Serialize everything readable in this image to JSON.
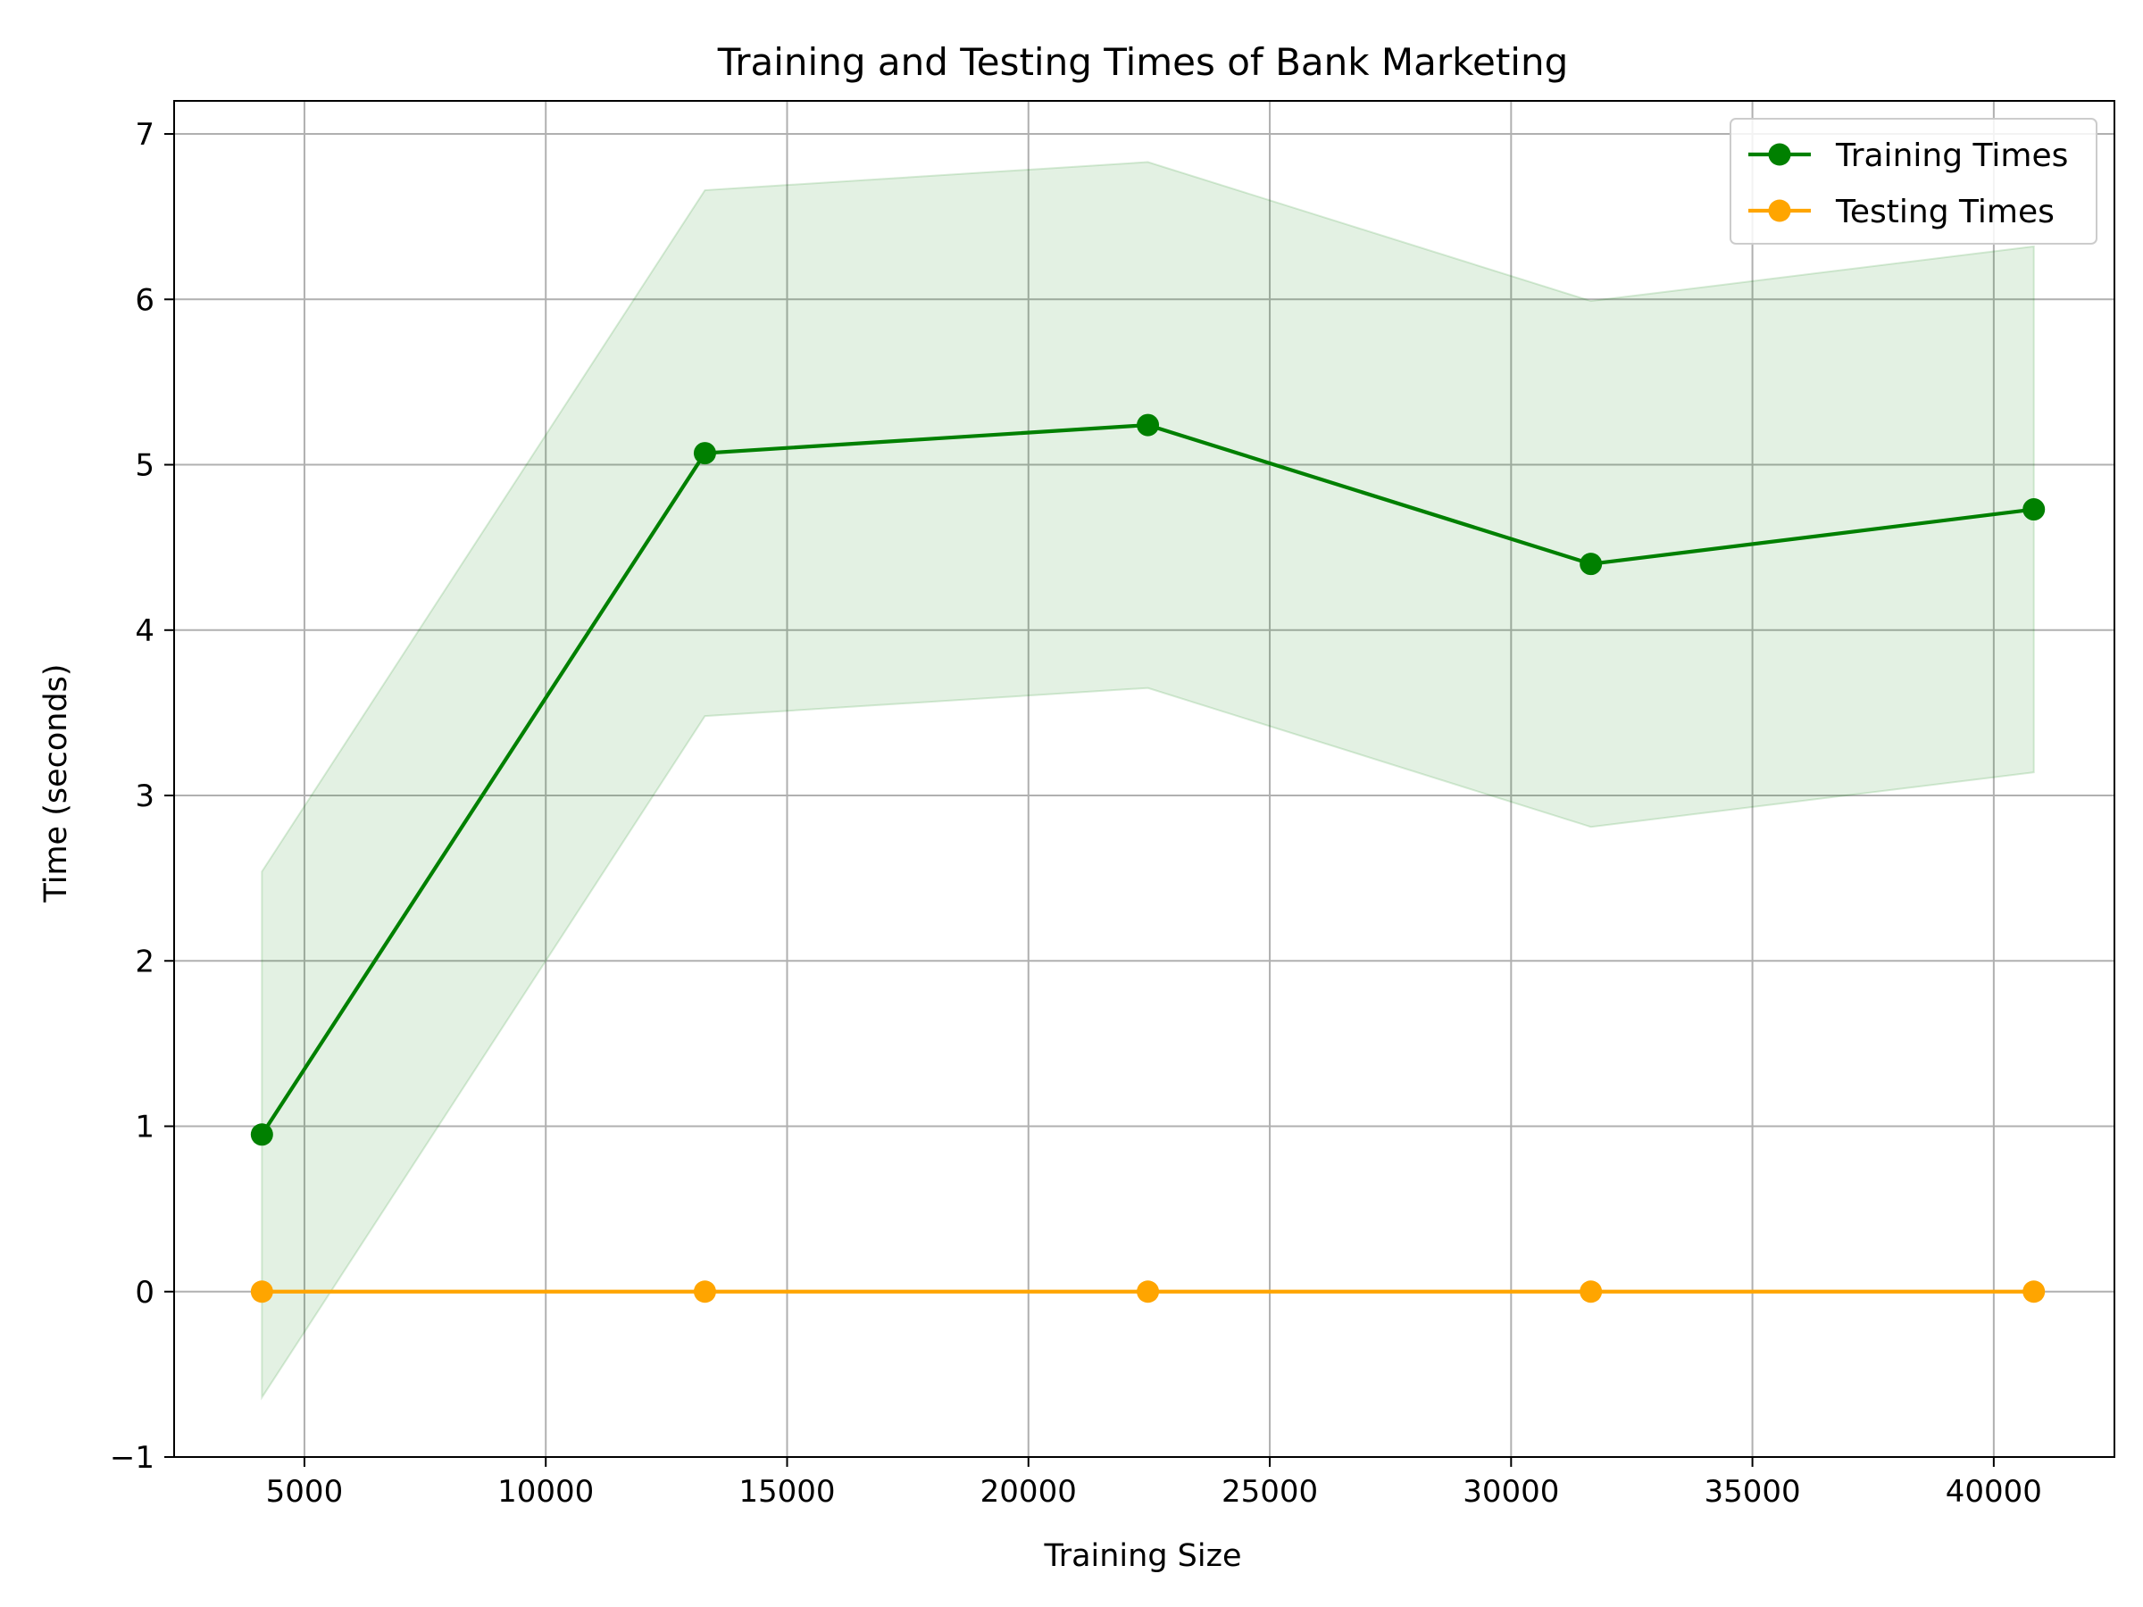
{
  "chart_data": {
    "type": "line",
    "title": "Training and Testing Times of Bank Marketing",
    "xlabel": "Training Size",
    "ylabel": "Time (seconds)",
    "xlim": [
      2300,
      42500
    ],
    "ylim": [
      -1,
      7.2
    ],
    "xticks": [
      5000,
      10000,
      15000,
      20000,
      25000,
      30000,
      35000,
      40000
    ],
    "xtick_labels": [
      "5000",
      "10000",
      "15000",
      "20000",
      "25000",
      "30000",
      "35000",
      "40000"
    ],
    "yticks": [
      -1,
      0,
      1,
      2,
      3,
      4,
      5,
      6,
      7
    ],
    "ytick_labels": [
      "−1",
      "0",
      "1",
      "2",
      "3",
      "4",
      "5",
      "6",
      "7"
    ],
    "grid": true,
    "legend_position": "top-right",
    "x": [
      4119,
      13297,
      22475,
      31653,
      40830
    ],
    "series": [
      {
        "name": "Training Times",
        "color": "#008000",
        "marker": "circle",
        "values": [
          0.95,
          5.07,
          5.24,
          4.4,
          4.73
        ],
        "band_upper": [
          2.54,
          6.66,
          6.83,
          5.99,
          6.32
        ],
        "band_lower": [
          -0.64,
          3.48,
          3.65,
          2.81,
          3.14
        ],
        "band_color": "#008000",
        "band_opacity": 0.11
      },
      {
        "name": "Testing Times",
        "color": "#ffa500",
        "marker": "circle",
        "values": [
          0.0,
          0.0,
          0.0,
          0.0,
          0.0
        ]
      }
    ]
  }
}
